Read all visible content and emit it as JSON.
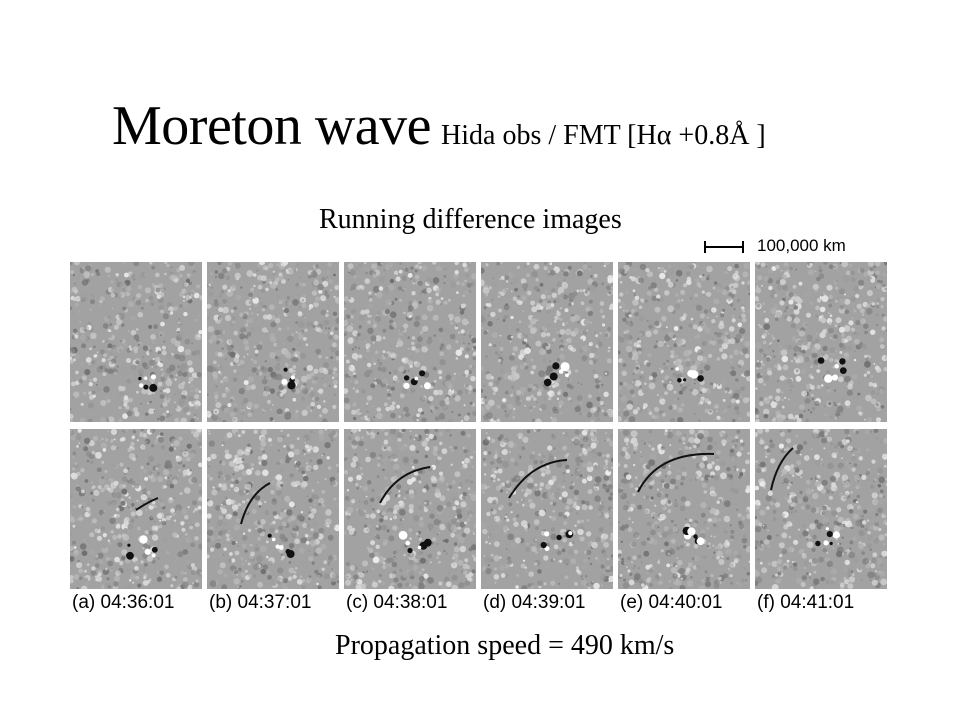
{
  "slide": {
    "title_main": "Moreton wave",
    "title_sub": "Hida obs / FMT [Hα +0.8Å ]",
    "subtitle": "Running difference images",
    "scale_label": "100,000 km",
    "speed_text": "Propagation speed = 490 km/s"
  },
  "panels": [
    {
      "label": "(a)",
      "time": "04:36:01",
      "caption": "(a) 04:36:01"
    },
    {
      "label": "(b)",
      "time": "04:37:01",
      "caption": "(b) 04:37:01"
    },
    {
      "label": "(c)",
      "time": "04:38:01",
      "caption": "(c) 04:38:01"
    },
    {
      "label": "(d)",
      "time": "04:39:01",
      "caption": "(d) 04:39:01"
    },
    {
      "label": "(e)",
      "time": "04:40:01",
      "caption": "(e) 04:40:01"
    },
    {
      "label": "(f)",
      "time": "04:41:01",
      "caption": "(f) 04:41:01"
    }
  ]
}
